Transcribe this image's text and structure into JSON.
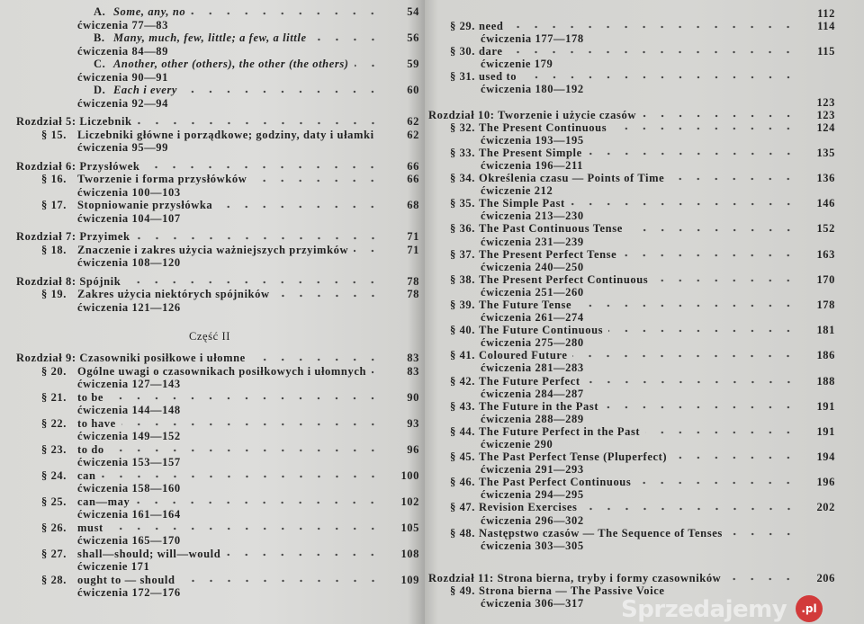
{
  "left_page": {
    "entries": [
      {
        "kind": "sub",
        "num": "A.",
        "title": "Some, any, no",
        "italic": true,
        "page": "54",
        "exercises": "ćwiczenia 77—83"
      },
      {
        "kind": "sub",
        "num": "B.",
        "title": "Many, much, few, little; a few, a little",
        "italic": true,
        "page": "56",
        "exercises": "ćwiczenia 84—89"
      },
      {
        "kind": "sub",
        "num": "C.",
        "title": "Another, other (others), the other (the others)",
        "italic": true,
        "page": "59",
        "exercises": "ćwiczenia 90—91"
      },
      {
        "kind": "sub",
        "num": "D.",
        "title": "Each i every",
        "italic": true,
        "page": "60",
        "exercises": "ćwiczenia 92—94"
      },
      {
        "kind": "chapter",
        "title": "Rozdział 5: Liczebnik",
        "page": "62"
      },
      {
        "kind": "section",
        "num": "§ 15.",
        "title": "Liczebniki główne i porządkowe; godziny, daty i ułamki",
        "page": "62",
        "exercises": "ćwiczenia 95—99",
        "noleader": true
      },
      {
        "kind": "chapter",
        "title": "Rozdział 6: Przysłówek",
        "page": "66"
      },
      {
        "kind": "section",
        "num": "§ 16.",
        "title": "Tworzenie i forma przysłówków",
        "page": "66",
        "exercises": "ćwiczenia 100—103"
      },
      {
        "kind": "section",
        "num": "§ 17.",
        "title": "Stopniowanie przysłówka",
        "page": "68",
        "exercises": "ćwiczenia 104—107"
      },
      {
        "kind": "chapter",
        "title": "Rozdział 7: Przyimek",
        "page": "71"
      },
      {
        "kind": "section",
        "num": "§ 18.",
        "title": "Znaczenie i zakres użycia ważniejszych przyimków",
        "page": "71",
        "exercises": "ćwiczenia 108—120"
      },
      {
        "kind": "chapter",
        "title": "Rozdział 8: Spójnik",
        "page": "78"
      },
      {
        "kind": "section",
        "num": "§ 19.",
        "title": "Zakres użycia niektórych spójników",
        "page": "78",
        "exercises": "ćwiczenia 121—126"
      },
      {
        "kind": "part",
        "title": "Część II"
      },
      {
        "kind": "chapter",
        "title": "Rozdział 9: Czasowniki posiłkowe i ułomne",
        "page": "83"
      },
      {
        "kind": "section",
        "num": "§ 20.",
        "title": "Ogólne uwagi o czasownikach posiłkowych i ułomnych",
        "page": "83",
        "exercises": "ćwiczenia 127—143"
      },
      {
        "kind": "section",
        "num": "§ 21.",
        "title": "to be",
        "page": "90",
        "exercises": "ćwiczenia 144—148"
      },
      {
        "kind": "section",
        "num": "§ 22.",
        "title": "to have",
        "page": "93",
        "exercises": "ćwiczenia 149—152"
      },
      {
        "kind": "section",
        "num": "§ 23.",
        "title": "to do",
        "page": "96",
        "exercises": "ćwiczenia 153—157"
      },
      {
        "kind": "section",
        "num": "§ 24.",
        "title": "can",
        "page": "100",
        "exercises": "ćwiczenia 158—160"
      },
      {
        "kind": "section",
        "num": "§ 25.",
        "title": "can—may",
        "page": "102",
        "exercises": "ćwiczenia 161—164"
      },
      {
        "kind": "section",
        "num": "§ 26.",
        "title": "must",
        "page": "105",
        "exercises": "ćwiczenia 165—170"
      },
      {
        "kind": "section",
        "num": "§ 27.",
        "title": "shall—should; will—would",
        "page": "108",
        "exercises": "ćwiczenie 171"
      },
      {
        "kind": "section",
        "num": "§ 28.",
        "title": "ought to — should",
        "page": "109",
        "exercises": "ćwiczenia 172—176"
      }
    ]
  },
  "right_page": {
    "entries": [
      {
        "kind": "pageonly",
        "page": "112"
      },
      {
        "kind": "section",
        "num": "§ 29.",
        "title": "need",
        "page": "114",
        "exercises": "ćwiczenia 177—178"
      },
      {
        "kind": "section",
        "num": "§ 30.",
        "title": "dare",
        "page": "115",
        "exercises": "ćwiczenie 179"
      },
      {
        "kind": "section",
        "num": "§ 31.",
        "title": "used to",
        "page": "",
        "exercises": "ćwiczenia 180—192"
      },
      {
        "kind": "pageonly",
        "page": "123"
      },
      {
        "kind": "chapter",
        "title": "Rozdział 10: Tworzenie i użycie czasów",
        "page": "123",
        "nogap": true
      },
      {
        "kind": "section",
        "num": "§ 32.",
        "title": "The Present Continuous",
        "page": "124",
        "exercises": "ćwiczenia 193—195"
      },
      {
        "kind": "section",
        "num": "§ 33.",
        "title": "The Present Simple",
        "page": "135",
        "exercises": "ćwiczenia 196—211"
      },
      {
        "kind": "section",
        "num": "§ 34.",
        "title": "Określenia czasu — Points of Time",
        "page": "136",
        "exercises": "ćwiczenie 212"
      },
      {
        "kind": "section",
        "num": "§ 35.",
        "title": "The Simple Past",
        "page": "146",
        "exercises": "ćwiczenia 213—230"
      },
      {
        "kind": "section",
        "num": "§ 36.",
        "title": "The Past Continuous Tense",
        "page": "152",
        "exercises": "ćwiczenia 231—239"
      },
      {
        "kind": "section",
        "num": "§ 37.",
        "title": "The Present Perfect Tense",
        "page": "163",
        "exercises": "ćwiczenia 240—250"
      },
      {
        "kind": "section",
        "num": "§ 38.",
        "title": "The Present Perfect Continuous",
        "page": "170",
        "exercises": "ćwiczenia 251—260"
      },
      {
        "kind": "section",
        "num": "§ 39.",
        "title": "The Future Tense",
        "page": "178",
        "exercises": "ćwiczenia 261—274"
      },
      {
        "kind": "section",
        "num": "§ 40.",
        "title": "The Future Continuous",
        "page": "181",
        "exercises": "ćwiczenia 275—280"
      },
      {
        "kind": "section",
        "num": "§ 41.",
        "title": "Coloured Future",
        "page": "186",
        "exercises": "ćwiczenia 281—283"
      },
      {
        "kind": "section",
        "num": "§ 42.",
        "title": "The Future Perfect",
        "page": "188",
        "exercises": "ćwiczenia 284—287"
      },
      {
        "kind": "section",
        "num": "§ 43.",
        "title": "The Future in the Past",
        "page": "191",
        "exercises": "ćwiczenia 288—289"
      },
      {
        "kind": "section",
        "num": "§ 44.",
        "title": "The Future Perfect in the Past",
        "page": "191",
        "exercises": "ćwiczenie 290"
      },
      {
        "kind": "section",
        "num": "§ 45.",
        "title": "The Past Perfect Tense (Pluperfect)",
        "page": "194",
        "exercises": "ćwiczenia 291—293"
      },
      {
        "kind": "section",
        "num": "§ 46.",
        "title": "The Past Perfect Continuous",
        "page": "196",
        "exercises": "ćwiczenia 294—295"
      },
      {
        "kind": "section",
        "num": "§ 47.",
        "title": "Revision Exercises",
        "page": "202",
        "exercises": "ćwiczenia 296—302"
      },
      {
        "kind": "section",
        "num": "§ 48.",
        "title": "Następstwo czasów — The Sequence of Tenses",
        "page": "",
        "exercises": "ćwiczenia 303—305"
      },
      {
        "kind": "chapter",
        "title": "Rozdział 11: Strona bierna, tryby i formy czasowników",
        "page": "206",
        "biggap": true
      },
      {
        "kind": "section",
        "num": "§ 49.",
        "title": "Strona bierna — The Passive Voice",
        "page": "",
        "exercises": "ćwiczenia 306—317",
        "noleader": true
      }
    ]
  },
  "watermark": {
    "text": "Sprzedajemy",
    "badge": ".pl",
    "badge_color": "#d23a3a"
  }
}
